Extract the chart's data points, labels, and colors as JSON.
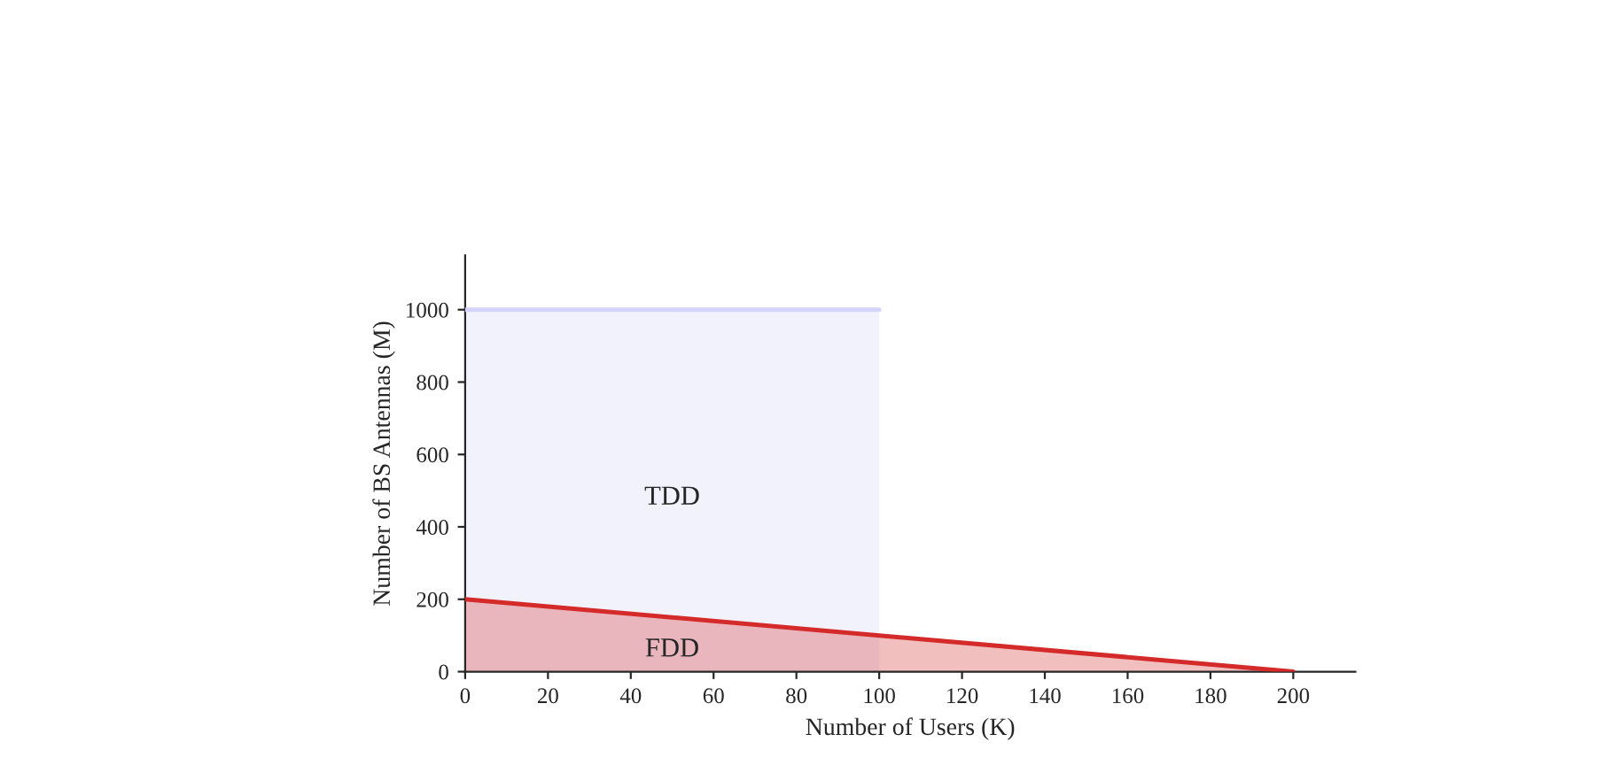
{
  "chart_data": {
    "type": "area",
    "xlabel": "Number of Users (K)",
    "ylabel": "Number of BS Antennas (M)",
    "series": [
      {
        "x": [
          0,
          100
        ],
        "values": [
          1000,
          1000
        ],
        "color": "#d4d4fa"
      },
      {
        "x": [
          0,
          200
        ],
        "values": [
          200,
          0
        ],
        "color": "#d42a2a"
      }
    ],
    "annotations": [
      "TDD",
      "FDD"
    ],
    "xlim": [
      0,
      215
    ],
    "ylim": [
      0,
      1150
    ],
    "xticks": [
      0,
      20,
      40,
      60,
      80,
      100,
      120,
      140,
      160,
      180,
      200
    ],
    "yticks": [
      0,
      200,
      400,
      600,
      800,
      1000
    ],
    "grid": false
  }
}
